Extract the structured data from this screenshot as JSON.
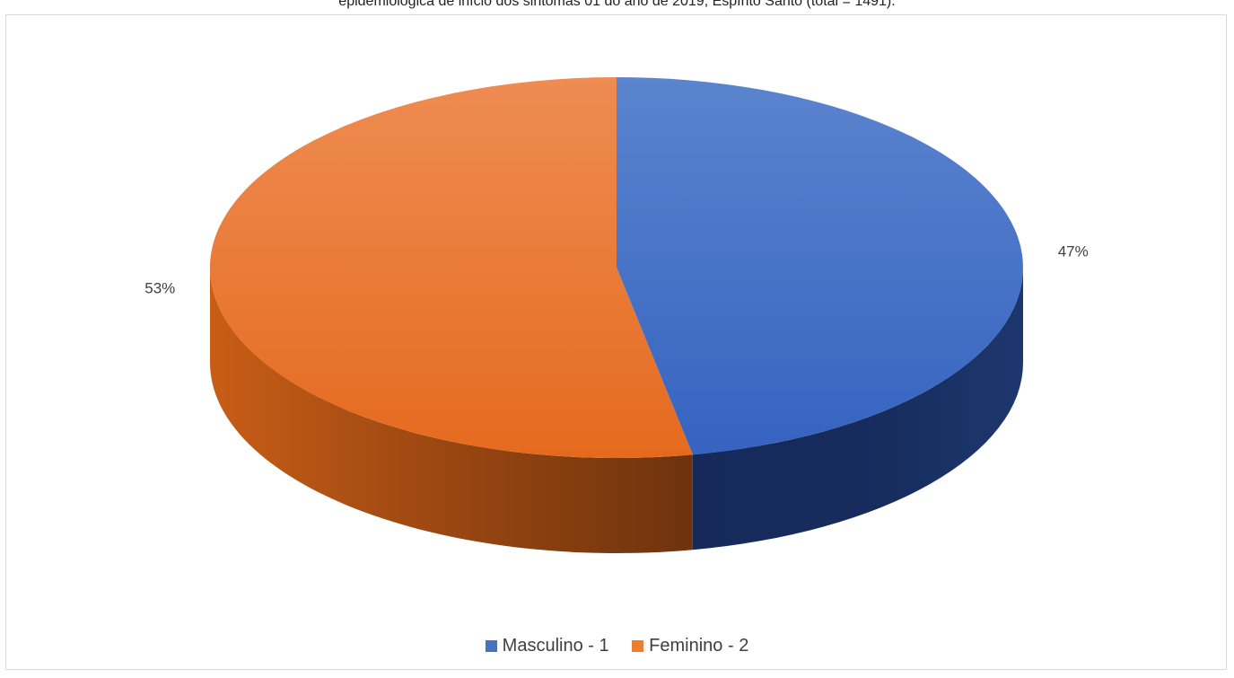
{
  "caption": "epidemiológica de início dos sintomas 01 do ano de 2019, Espírito Santo (total = 1491).",
  "chart_data": {
    "type": "pie",
    "categories": [
      "Masculino - 1",
      "Feminino - 2"
    ],
    "values": [
      47,
      53
    ],
    "data_labels": [
      "47%",
      "53%"
    ],
    "colors": [
      "#4472C4",
      "#ED7D31"
    ],
    "legend_position": "bottom",
    "three_d": true
  }
}
